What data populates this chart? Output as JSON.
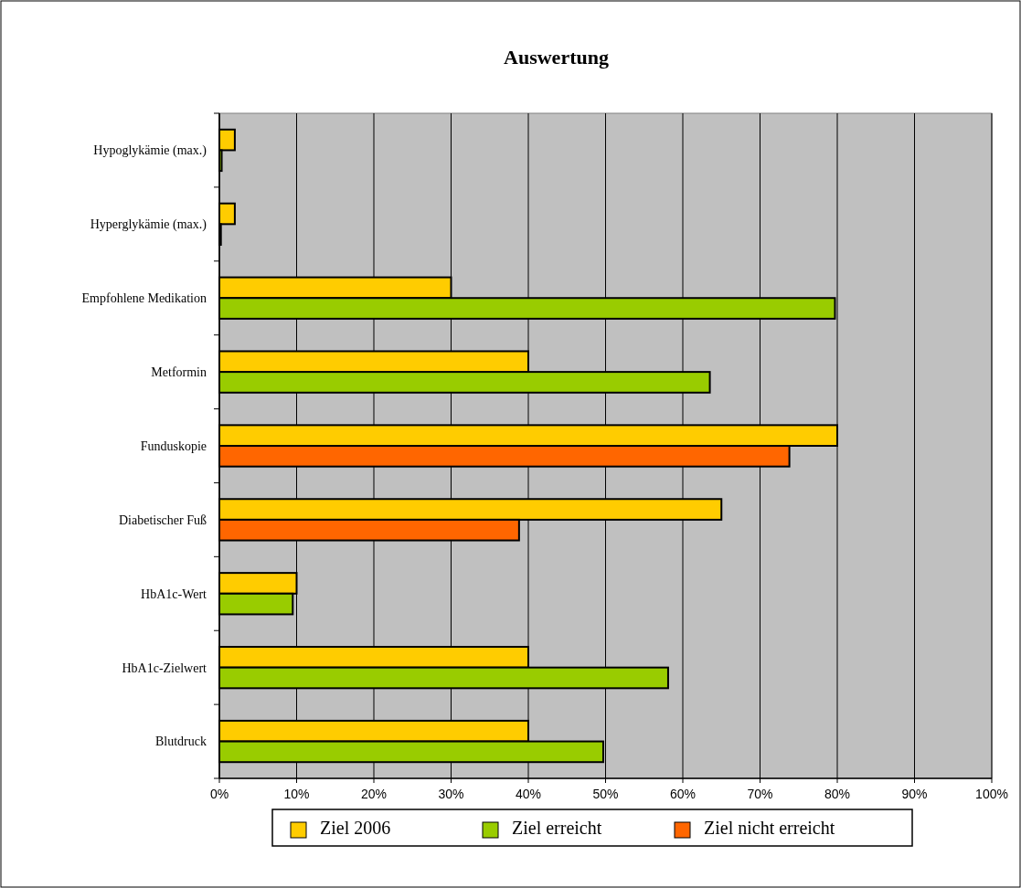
{
  "chart_data": {
    "type": "bar",
    "orientation": "horizontal",
    "title": "Auswertung",
    "categories": [
      "Hypoglykämie (max.)",
      "Hyperglykämie (max.)",
      "Empfohlene Medikation",
      "Metformin",
      "Funduskopie",
      "Diabetischer Fuß",
      "HbA1c-Wert",
      "HbA1c-Zielwert",
      "Blutdruck"
    ],
    "series": [
      {
        "name": "Ziel 2006",
        "color": "#ffcc00",
        "values": [
          2,
          2,
          30,
          40,
          80,
          65,
          10,
          40,
          40
        ]
      },
      {
        "name": "Ziel erreicht",
        "color": "#99cc00",
        "values": [
          0.3,
          0.2,
          79.7,
          63.5,
          null,
          null,
          9.5,
          58.1,
          49.7
        ]
      },
      {
        "name": "Ziel nicht erreicht",
        "color": "#ff6600",
        "values": [
          null,
          null,
          null,
          null,
          73.8,
          38.8,
          null,
          null,
          null
        ]
      }
    ],
    "xlim": [
      0,
      100
    ],
    "xticks": [
      {
        "value": 0,
        "label": "0%"
      },
      {
        "value": 10,
        "label": "10%"
      },
      {
        "value": 20,
        "label": "20%"
      },
      {
        "value": 30,
        "label": "30%"
      },
      {
        "value": 40,
        "label": "40%"
      },
      {
        "value": 50,
        "label": "50%"
      },
      {
        "value": 60,
        "label": "60%"
      },
      {
        "value": 70,
        "label": "70%"
      },
      {
        "value": 80,
        "label": "80%"
      },
      {
        "value": 90,
        "label": "90%"
      },
      {
        "value": 100,
        "label": "100%"
      }
    ],
    "grid": "x",
    "legend": "bottom"
  }
}
